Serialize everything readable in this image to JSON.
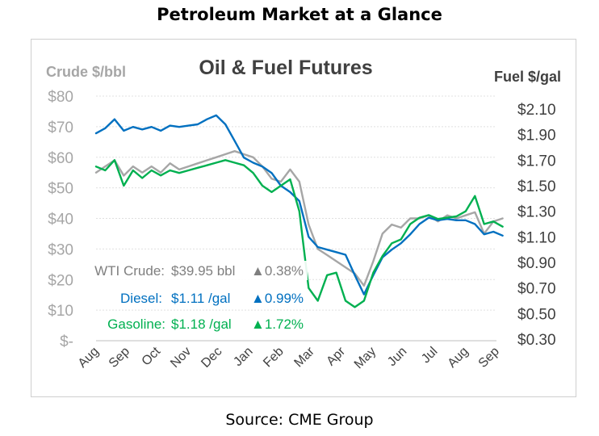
{
  "page_title": "Petroleum Market at a Glance",
  "source": "Source: CME Group",
  "chart_data": {
    "type": "line",
    "title": "Oil & Fuel Futures",
    "y_left_label": "Crude $/bbl",
    "y_right_label": "Fuel $/gal",
    "y_left_ticks": [
      "$80",
      "$70",
      "$60",
      "$50",
      "$40",
      "$30",
      "$20",
      "$10",
      "$-"
    ],
    "y_right_ticks": [
      "$2.10",
      "$1.90",
      "$1.70",
      "$1.50",
      "$1.30",
      "$1.10",
      "$0.90",
      "$0.70",
      "$0.50",
      "$0.30"
    ],
    "y_left_range": [
      0,
      80
    ],
    "y_right_range": [
      0.3,
      2.1
    ],
    "x_ticks": [
      "Aug",
      "Sep",
      "Oct",
      "Nov",
      "Dec",
      "Jan",
      "Feb",
      "Mar",
      "Apr",
      "May",
      "Jun",
      "Jul",
      "Aug",
      "Sep"
    ],
    "colors": {
      "crude": "#a6a6a6",
      "diesel": "#0070c0",
      "gasoline": "#00b050",
      "axis_text": "#a6a6a6",
      "title_text": "#404040",
      "grid": "#e0e0e0"
    },
    "series": [
      {
        "name": "WTI Crude",
        "axis": "left",
        "color": "#a6a6a6",
        "x": [
          0,
          0.3,
          0.6,
          0.9,
          1.2,
          1.5,
          1.8,
          2.1,
          2.4,
          2.7,
          3.0,
          3.3,
          3.6,
          3.9,
          4.2,
          4.5,
          4.8,
          5.1,
          5.4,
          5.7,
          6.0,
          6.3,
          6.6,
          6.9,
          7.2,
          7.5,
          7.8,
          8.1,
          8.4,
          8.7,
          9.0,
          9.3,
          9.6,
          9.9,
          10.2,
          10.5,
          10.8,
          11.1,
          11.4,
          11.7,
          12.0,
          12.3,
          12.6,
          12.9,
          13.2
        ],
        "values": [
          55,
          57,
          59,
          54,
          57,
          55,
          57,
          55,
          58,
          56,
          57,
          58,
          59,
          60,
          61,
          62,
          61,
          60,
          57,
          53,
          52,
          56,
          52,
          38,
          30,
          28,
          26,
          24,
          22,
          18,
          26,
          35,
          38,
          37,
          40,
          40,
          41,
          39,
          41,
          40,
          41,
          42,
          35,
          39,
          40
        ]
      },
      {
        "name": "Diesel",
        "axis": "right",
        "color": "#0070c0",
        "x": [
          0,
          0.3,
          0.6,
          0.9,
          1.2,
          1.5,
          1.8,
          2.1,
          2.4,
          2.7,
          3.0,
          3.3,
          3.6,
          3.9,
          4.2,
          4.5,
          4.8,
          5.1,
          5.4,
          5.7,
          6.0,
          6.3,
          6.6,
          6.9,
          7.2,
          7.5,
          7.8,
          8.1,
          8.4,
          8.7,
          9.0,
          9.3,
          9.6,
          9.9,
          10.2,
          10.5,
          10.8,
          11.1,
          11.4,
          11.7,
          12.0,
          12.3,
          12.6,
          12.9,
          13.2
        ],
        "values": [
          1.91,
          1.95,
          2.02,
          1.93,
          1.96,
          1.94,
          1.96,
          1.93,
          1.97,
          1.96,
          1.97,
          1.98,
          2.02,
          2.05,
          1.98,
          1.85,
          1.72,
          1.68,
          1.65,
          1.6,
          1.5,
          1.45,
          1.38,
          1.1,
          1.02,
          1.0,
          0.98,
          0.96,
          0.8,
          0.65,
          0.8,
          0.94,
          1.0,
          1.05,
          1.12,
          1.2,
          1.25,
          1.23,
          1.24,
          1.23,
          1.23,
          1.2,
          1.12,
          1.14,
          1.11
        ]
      },
      {
        "name": "Gasoline",
        "axis": "right",
        "color": "#00b050",
        "x": [
          0,
          0.3,
          0.6,
          0.9,
          1.2,
          1.5,
          1.8,
          2.1,
          2.4,
          2.7,
          3.0,
          3.3,
          3.6,
          3.9,
          4.2,
          4.5,
          4.8,
          5.1,
          5.4,
          5.7,
          6.0,
          6.3,
          6.6,
          6.9,
          7.2,
          7.5,
          7.8,
          8.1,
          8.4,
          8.7,
          9.0,
          9.3,
          9.6,
          9.9,
          10.2,
          10.5,
          10.8,
          11.1,
          11.4,
          11.7,
          12.0,
          12.3,
          12.6,
          12.9,
          13.2
        ],
        "values": [
          1.65,
          1.62,
          1.7,
          1.5,
          1.62,
          1.56,
          1.62,
          1.58,
          1.62,
          1.6,
          1.62,
          1.64,
          1.66,
          1.68,
          1.7,
          1.68,
          1.66,
          1.6,
          1.5,
          1.45,
          1.5,
          1.55,
          1.3,
          0.7,
          0.6,
          0.8,
          0.82,
          0.6,
          0.55,
          0.6,
          0.82,
          0.95,
          1.05,
          1.08,
          1.2,
          1.25,
          1.27,
          1.24,
          1.25,
          1.26,
          1.3,
          1.42,
          1.2,
          1.22,
          1.18
        ]
      }
    ],
    "annotations": [
      {
        "label": "WTI Crude:",
        "value": "$39.95 bbl",
        "change": "0.38%",
        "color": "#7f7f7f"
      },
      {
        "label": "Diesel:",
        "value": "$1.11 /gal",
        "change": "0.99%",
        "color": "#0070c0"
      },
      {
        "label": "Gasoline:",
        "value": "$1.18 /gal",
        "change": "1.72%",
        "color": "#00b050"
      }
    ],
    "up_arrow": "▲",
    "grid": true
  }
}
